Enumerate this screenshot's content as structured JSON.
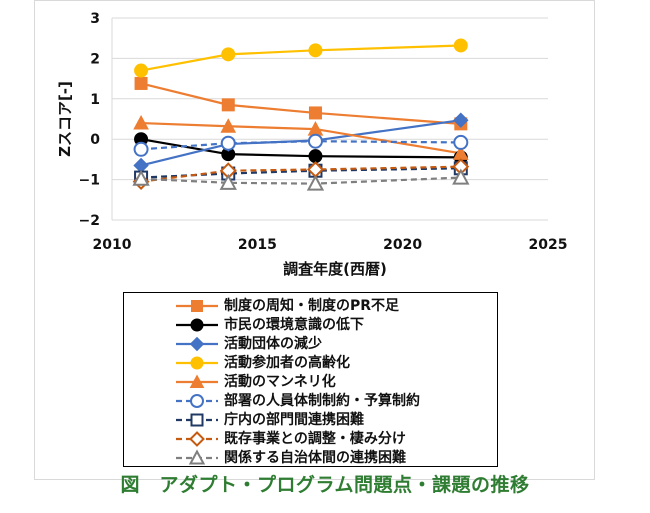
{
  "chart_data": {
    "type": "line",
    "title": "",
    "xlabel": "調査年度(西暦)",
    "ylabel": "Zスコア[-]",
    "xlim": [
      2010,
      2025
    ],
    "ylim": [
      -2,
      3
    ],
    "xticks": [
      2010,
      2015,
      2020,
      2025
    ],
    "yticks": [
      -2,
      -1,
      0,
      1,
      2,
      3
    ],
    "ytick_labels": [
      "−2",
      "−1",
      "0",
      "1",
      "2",
      "3"
    ],
    "x": [
      2011,
      2014,
      2017,
      2022
    ],
    "legend_position": "bottom",
    "series": [
      {
        "name": "制度の周知・制度のPR不足",
        "values": [
          1.38,
          0.85,
          0.65,
          0.38
        ],
        "color": "#ed7d31",
        "marker": "square-filled",
        "dash": "solid"
      },
      {
        "name": "市民の環境意識の低下",
        "values": [
          0.0,
          -0.37,
          -0.42,
          -0.45
        ],
        "color": "#000000",
        "marker": "circle-filled",
        "dash": "solid"
      },
      {
        "name": "活動団体の減少",
        "values": [
          -0.65,
          -0.12,
          -0.03,
          0.47
        ],
        "color": "#4472c4",
        "marker": "diamond-filled",
        "dash": "solid"
      },
      {
        "name": "活動参加者の高齢化",
        "values": [
          1.7,
          2.1,
          2.2,
          2.32
        ],
        "color": "#ffc000",
        "marker": "circle-filled",
        "dash": "solid"
      },
      {
        "name": "活動のマンネリ化",
        "values": [
          0.4,
          0.32,
          0.25,
          -0.35
        ],
        "color": "#ed7d31",
        "marker": "triangle-filled",
        "dash": "solid"
      },
      {
        "name": "部署の人員体制制約・予算制約",
        "values": [
          -0.25,
          -0.1,
          -0.05,
          -0.08
        ],
        "color": "#4472c4",
        "marker": "circle-open",
        "dash": "dashed"
      },
      {
        "name": "庁内の部門間連携困難",
        "values": [
          -0.95,
          -0.85,
          -0.78,
          -0.72
        ],
        "color": "#203864",
        "marker": "square-open",
        "dash": "dashed"
      },
      {
        "name": "既存事業との調整・棲み分け",
        "values": [
          -1.05,
          -0.78,
          -0.75,
          -0.68
        ],
        "color": "#c55a11",
        "marker": "diamond-open",
        "dash": "dashed"
      },
      {
        "name": "関係する自治体間の連携困難",
        "values": [
          -0.98,
          -1.08,
          -1.1,
          -0.95
        ],
        "color": "#7f7f7f",
        "marker": "triangle-open",
        "dash": "dashed"
      }
    ]
  },
  "caption": "図　アダプト・プログラム問題点・課題の推移"
}
